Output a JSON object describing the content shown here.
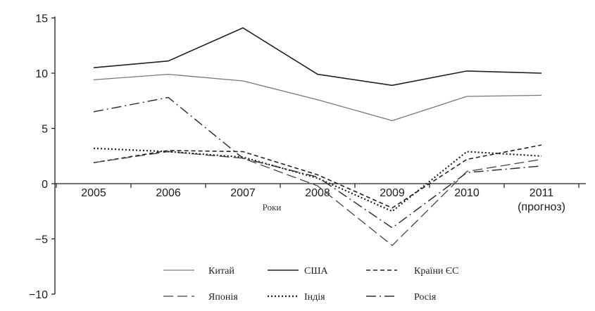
{
  "chart_data": {
    "type": "line",
    "title": "",
    "xlabel": "Роки",
    "ylabel": "",
    "categories": [
      "2005",
      "2006",
      "2007",
      "2008",
      "2009",
      "2010",
      "2011"
    ],
    "category_note": "(прогноз)",
    "ylim": [
      -10,
      15
    ],
    "yticks": [
      15,
      10,
      5,
      0,
      -5,
      -10
    ],
    "grid": false,
    "legend_position": "bottom",
    "series": [
      {
        "name": "Китай",
        "style": "solid-light",
        "color": "#777777",
        "values": [
          9.4,
          9.9,
          9.3,
          7.6,
          5.7,
          7.9,
          8.0
        ]
      },
      {
        "name": "США",
        "style": "solid",
        "color": "#222222",
        "values": [
          10.5,
          11.1,
          14.1,
          9.9,
          8.9,
          10.2,
          10.0
        ]
      },
      {
        "name": "Країни ЄС",
        "style": "dashed",
        "color": "#222222",
        "values": [
          1.9,
          3.0,
          2.9,
          0.8,
          -2.2,
          2.2,
          3.5
        ]
      },
      {
        "name": "Японія",
        "style": "long-dashed",
        "color": "#444444",
        "values": [
          1.9,
          2.9,
          2.3,
          -0.2,
          -5.6,
          1.1,
          2.2
        ]
      },
      {
        "name": "Індія",
        "style": "dotted",
        "color": "#222222",
        "values": [
          3.2,
          2.9,
          2.4,
          0.5,
          -2.5,
          2.9,
          2.5
        ]
      },
      {
        "name": "Росія",
        "style": "dash-dot",
        "color": "#333333",
        "values": [
          6.5,
          7.8,
          2.3,
          0.6,
          -4.0,
          1.0,
          1.6
        ]
      }
    ]
  }
}
